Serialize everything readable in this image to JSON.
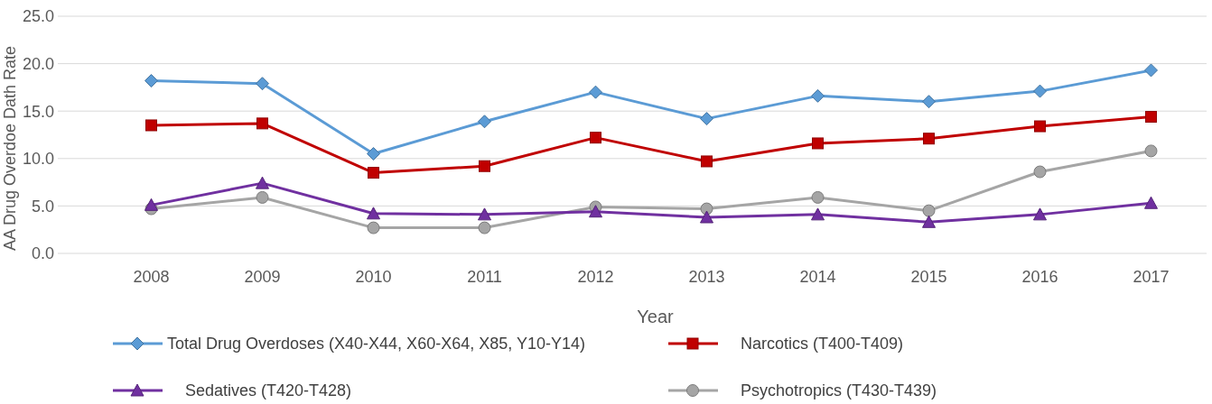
{
  "chart_data": {
    "type": "line",
    "xlabel": "Year",
    "ylabel": "AA Drug Overdoe Dath Rate",
    "categories": [
      "2008",
      "2009",
      "2010",
      "2011",
      "2012",
      "2013",
      "2014",
      "2015",
      "2016",
      "2017"
    ],
    "series": [
      {
        "name": "Total Drug Overdoses (X40-X44, X60-X64, X85, Y10-Y14)",
        "color": "#5b9bd5",
        "marker": "diamond",
        "values": [
          18.2,
          17.9,
          10.5,
          13.9,
          17.0,
          14.2,
          16.6,
          16.0,
          17.1,
          19.3
        ]
      },
      {
        "name": "Narcotics (T400-T409)",
        "color": "#c00000",
        "marker": "square",
        "values": [
          13.5,
          13.7,
          8.5,
          9.2,
          12.2,
          9.7,
          11.6,
          12.1,
          13.4,
          14.4
        ]
      },
      {
        "name": "Sedatives (T420-T428)",
        "color": "#7030a0",
        "marker": "triangle",
        "values": [
          5.1,
          7.4,
          4.2,
          4.1,
          4.4,
          3.8,
          4.1,
          3.3,
          4.1,
          5.3
        ]
      },
      {
        "name": "Psychotropics (T430-T439)",
        "color": "#a5a5a5",
        "marker": "circle",
        "values": [
          4.7,
          5.9,
          2.7,
          2.7,
          4.9,
          4.7,
          5.9,
          4.5,
          8.6,
          10.8
        ]
      }
    ],
    "ylim": [
      0,
      25
    ],
    "yticks": [
      {
        "value": 0,
        "label": "0.0"
      },
      {
        "value": 5,
        "label": "5.0"
      },
      {
        "value": 10,
        "label": "10.0"
      },
      {
        "value": 15,
        "label": "15.0"
      },
      {
        "value": 20,
        "label": "20.0"
      },
      {
        "value": 25,
        "label": "25.0"
      }
    ],
    "grid": "y",
    "legend": "bottom",
    "line_style": "solid"
  }
}
